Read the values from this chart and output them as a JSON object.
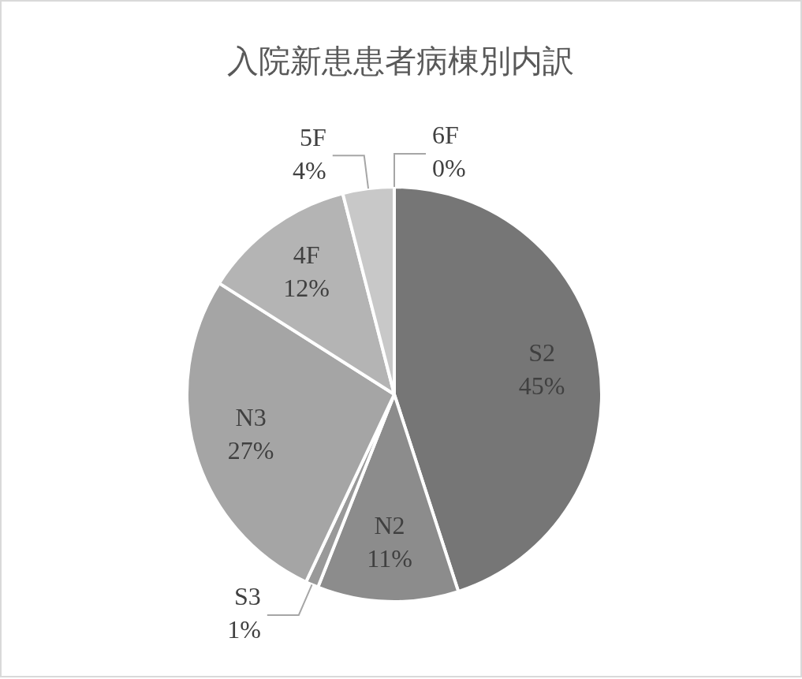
{
  "chart_data": {
    "type": "pie",
    "title": "入院新患患者病棟別内訳",
    "categories": [
      "S2",
      "N2",
      "S3",
      "N3",
      "4F",
      "5F",
      "6F"
    ],
    "values": [
      45,
      11,
      1,
      27,
      12,
      4,
      0
    ],
    "value_labels": [
      "45%",
      "11%",
      "1%",
      "27%",
      "12%",
      "4%",
      "0%"
    ],
    "colors": [
      "#767676",
      "#8c8c8c",
      "#999999",
      "#a5a5a5",
      "#b4b4b4",
      "#c8c8c8",
      "#d8d8d8"
    ],
    "legend": false
  }
}
